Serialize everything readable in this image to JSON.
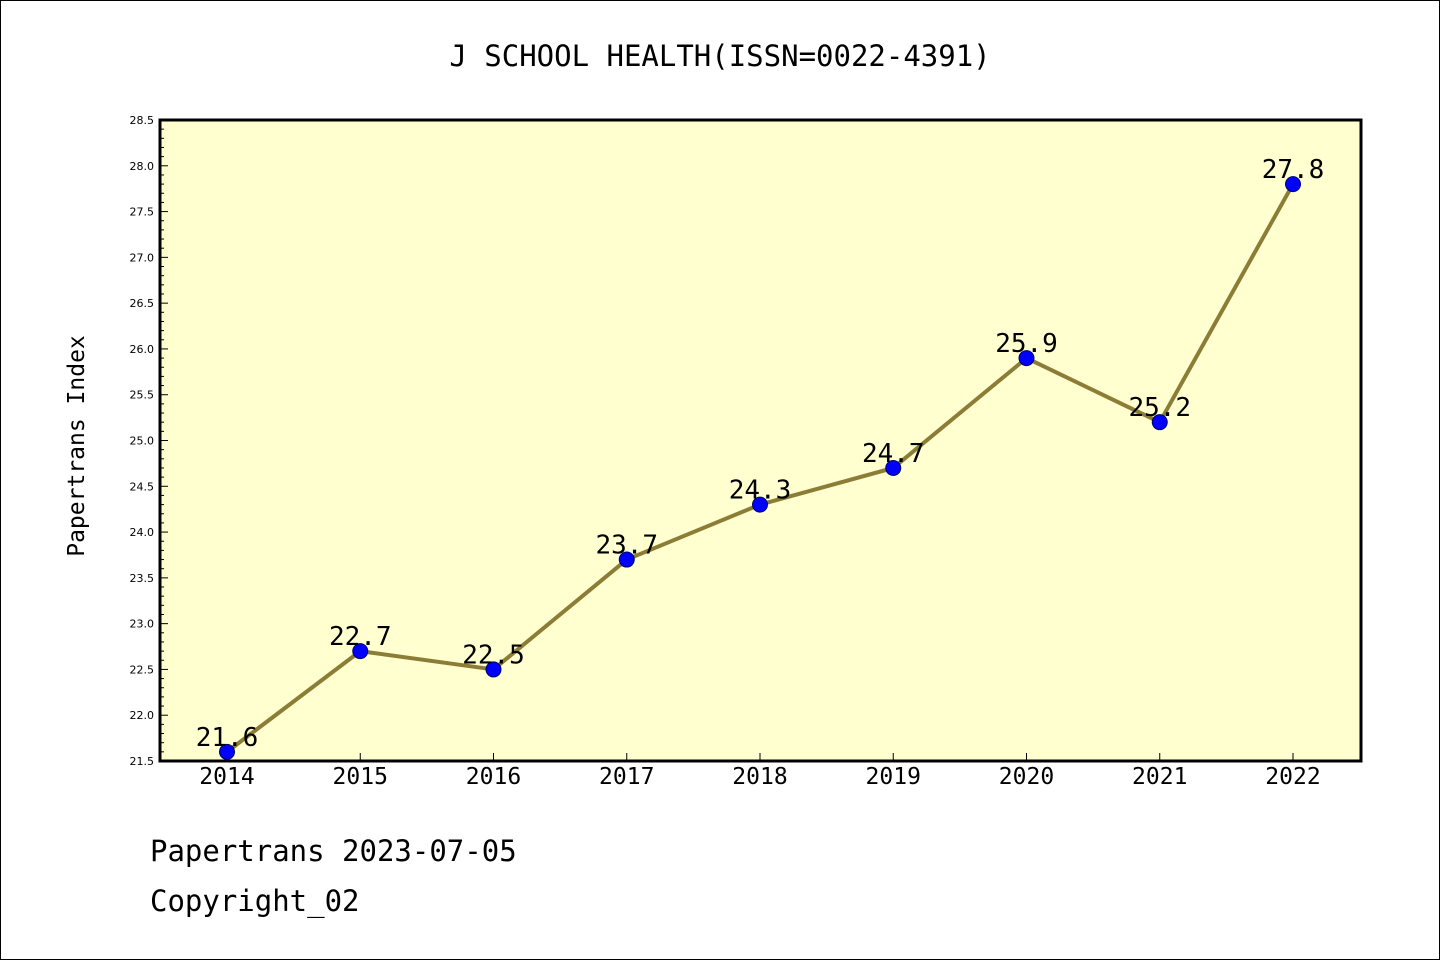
{
  "chart_data": {
    "type": "line",
    "title": "J SCHOOL HEALTH(ISSN=0022-4391)",
    "xlabel": "",
    "ylabel": "Papertrans Index",
    "categories": [
      "2014",
      "2015",
      "2016",
      "2017",
      "2018",
      "2019",
      "2020",
      "2021",
      "2022"
    ],
    "series": [
      {
        "values": [
          21.6,
          22.7,
          22.5,
          23.7,
          24.3,
          24.7,
          25.9,
          25.2,
          27.8
        ]
      }
    ],
    "data_labels": [
      "21.6",
      "22.7",
      "22.5",
      "23.7",
      "24.3",
      "24.7",
      "25.9",
      "25.2",
      "27.8"
    ],
    "ylim": [
      21.5,
      28.5
    ],
    "yticks": [
      "21.5",
      "22.0",
      "22.5",
      "23.0",
      "23.5",
      "24.0",
      "24.5",
      "25.0",
      "25.5",
      "26.0",
      "26.5",
      "27.0",
      "27.5",
      "28.0",
      "28.5"
    ],
    "grid": false,
    "legend": "none",
    "colors": {
      "plot_background": "#ffffd0",
      "line": "#8b7d35",
      "marker": "#0000ff"
    }
  },
  "footer": {
    "line1": "Papertrans 2023-07-05",
    "line2": "Copyright_02"
  }
}
